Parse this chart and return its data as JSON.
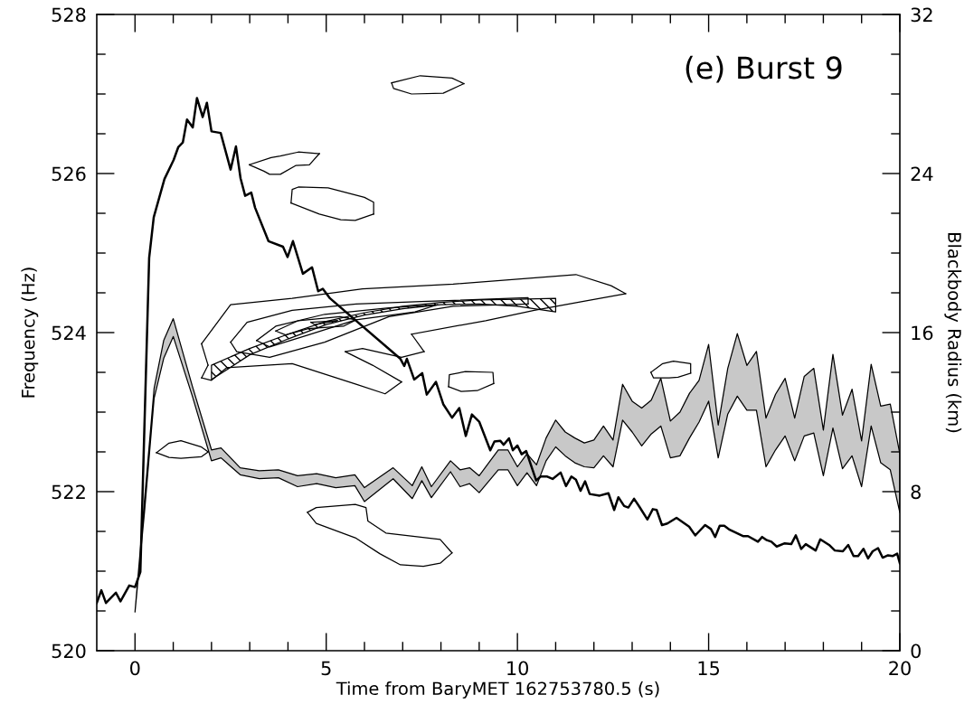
{
  "chart_data": {
    "type": "line",
    "xlabel": "Time from BaryMET 162753780.5 (s)",
    "ylabel": "Frequency (Hz)",
    "y2label": "Blackbody Radius (km)",
    "annotations": [
      "(e) Burst 9"
    ],
    "xlim": [
      -1,
      20
    ],
    "ylim": [
      520,
      528
    ],
    "y2lim": [
      0,
      32
    ],
    "xticks": [
      0,
      {
        "value": 1,
        "label": null
      },
      {
        "value": 2,
        "label": null
      },
      {
        "value": 3,
        "label": null
      },
      {
        "value": 4,
        "label": null
      },
      5,
      {
        "value": 6,
        "label": null
      },
      {
        "value": 7,
        "label": null
      },
      {
        "value": 8,
        "label": null
      },
      {
        "value": 9,
        "label": null
      },
      10,
      {
        "value": 11,
        "label": null
      },
      {
        "value": 12,
        "label": null
      },
      {
        "value": 13,
        "label": null
      },
      {
        "value": 14,
        "label": null
      },
      15,
      {
        "value": 16,
        "label": null
      },
      {
        "value": 17,
        "label": null
      },
      {
        "value": 18,
        "label": null
      },
      {
        "value": 19,
        "label": null
      },
      20
    ],
    "yticks": [
      520,
      {
        "value": 520.5,
        "label": null
      },
      {
        "value": 521,
        "label": null
      },
      {
        "value": 521.5,
        "label": null
      },
      522,
      {
        "value": 522.5,
        "label": null
      },
      {
        "value": 523,
        "label": null
      },
      {
        "value": 523.5,
        "label": null
      },
      524,
      {
        "value": 524.5,
        "label": null
      },
      {
        "value": 525,
        "label": null
      },
      {
        "value": 525.5,
        "label": null
      },
      526,
      {
        "value": 526.5,
        "label": null
      },
      {
        "value": 527,
        "label": null
      },
      {
        "value": 527.5,
        "label": null
      },
      528
    ],
    "y2ticks": [
      0,
      {
        "value": 2,
        "label": null
      },
      {
        "value": 4,
        "label": null
      },
      {
        "value": 6,
        "label": null
      },
      8,
      {
        "value": 10,
        "label": null
      },
      {
        "value": 12,
        "label": null
      },
      {
        "value": 14,
        "label": null
      },
      16,
      {
        "value": 18,
        "label": null
      },
      {
        "value": 20,
        "label": null
      },
      {
        "value": 22,
        "label": null
      },
      24,
      {
        "value": 26,
        "label": null
      },
      {
        "value": 28,
        "label": null
      },
      {
        "value": 30,
        "label": null
      },
      32
    ],
    "grid": false,
    "marker": "none",
    "series": [
      {
        "color": "#000000",
        "x": [
          -1.0,
          -0.88,
          -0.76,
          -0.5,
          -0.38,
          -0.15,
          0.0,
          0.14,
          0.37,
          0.49,
          0.77,
          1.01,
          1.13,
          1.25,
          1.36,
          1.51,
          1.62,
          1.77,
          1.88,
          2.0,
          2.24,
          2.5,
          2.64,
          2.76,
          2.88,
          3.04,
          3.14,
          3.49,
          3.87,
          3.99,
          4.13,
          4.39,
          4.63,
          4.79,
          4.91,
          5.1,
          6.94,
          7.04,
          7.11,
          7.3,
          7.51,
          7.63,
          7.87,
          8.06,
          8.29,
          8.48,
          8.65,
          8.81,
          9.0,
          9.29,
          9.4,
          9.55,
          9.64,
          9.78,
          9.88,
          10.0,
          10.11,
          10.23,
          10.49,
          10.61,
          10.78,
          10.92,
          11.13,
          11.27,
          11.41,
          11.53,
          11.65,
          11.77,
          11.89,
          12.15,
          12.38,
          12.53,
          12.64,
          12.79,
          12.9,
          13.05,
          13.19,
          13.4,
          13.54,
          13.64,
          13.78,
          13.92,
          14.16,
          14.49,
          14.65,
          14.75,
          14.91,
          15.06,
          15.17,
          15.29,
          15.41,
          15.55,
          15.91,
          16.03,
          16.29,
          16.4,
          16.52,
          16.64,
          16.78,
          16.99,
          17.16,
          17.28,
          17.42,
          17.54,
          17.8,
          17.92,
          18.15,
          18.3,
          18.51,
          18.65,
          18.79,
          18.91,
          19.05,
          19.17,
          19.29,
          19.43,
          19.55,
          19.69,
          19.81,
          19.93,
          20.0
        ],
        "values": [
          520.6,
          520.76,
          520.6,
          520.73,
          520.62,
          520.82,
          520.8,
          520.99,
          524.94,
          525.45,
          525.93,
          526.17,
          526.33,
          526.39,
          526.68,
          526.58,
          526.95,
          526.71,
          526.89,
          526.53,
          526.51,
          526.05,
          526.34,
          525.94,
          525.72,
          525.76,
          525.57,
          525.15,
          525.08,
          524.95,
          525.15,
          524.74,
          524.82,
          524.52,
          524.55,
          524.43,
          523.67,
          523.58,
          523.67,
          523.41,
          523.49,
          523.22,
          523.38,
          523.1,
          522.93,
          523.05,
          522.7,
          522.97,
          522.88,
          522.52,
          522.63,
          522.64,
          522.59,
          522.67,
          522.52,
          522.58,
          522.47,
          522.51,
          522.14,
          522.19,
          522.19,
          522.16,
          522.24,
          522.07,
          522.19,
          522.15,
          522.01,
          522.13,
          521.97,
          521.95,
          521.98,
          521.77,
          521.93,
          521.82,
          521.8,
          521.91,
          521.81,
          521.65,
          521.78,
          521.77,
          521.58,
          521.6,
          521.67,
          521.56,
          521.45,
          521.5,
          521.58,
          521.53,
          521.43,
          521.57,
          521.57,
          521.52,
          521.44,
          521.44,
          521.37,
          521.43,
          521.39,
          521.37,
          521.31,
          521.35,
          521.34,
          521.45,
          521.28,
          521.34,
          521.26,
          521.4,
          521.33,
          521.26,
          521.25,
          521.33,
          521.19,
          521.19,
          521.28,
          521.16,
          521.25,
          521.29,
          521.17,
          521.2,
          521.19,
          521.22,
          521.1
        ]
      },
      {
        "type": "area",
        "axis": "y2",
        "color": "#c8c8c8",
        "x": [
          0,
          0.25,
          0.5,
          0.75,
          1.0,
          1.5,
          2.0,
          2.25,
          2.75,
          3.25,
          3.75,
          4.25,
          4.75,
          5.25,
          5.75,
          6.0,
          6.75,
          7.25,
          7.5,
          7.75,
          8.25,
          8.5,
          8.75,
          9.0,
          9.5,
          9.75,
          10.0,
          10.25,
          10.5,
          10.75,
          11.0,
          11.25,
          11.5,
          11.75,
          12.0,
          12.25,
          12.5,
          12.75,
          13.0,
          13.25,
          13.5,
          13.75,
          14.0,
          14.25,
          14.5,
          14.75,
          15.0,
          15.25,
          15.5,
          15.75,
          16.0,
          16.25,
          16.5,
          16.75,
          17.0,
          17.25,
          17.5,
          17.75,
          18.0,
          18.25,
          18.5,
          18.75,
          19.0,
          19.25,
          19.5,
          19.75,
          20.0
        ],
        "values": [
          null,
          null,
          null,
          null,
          null,
          null,
          null,
          null,
          null,
          null,
          null,
          null,
          null,
          null,
          null,
          null,
          null,
          null,
          null,
          null,
          null,
          null,
          null,
          null,
          null,
          null,
          null,
          null,
          null,
          null,
          null,
          null,
          null,
          null,
          null,
          null,
          null,
          null,
          null,
          null,
          null,
          null,
          null,
          null,
          null,
          null,
          null,
          null,
          null,
          null,
          null,
          null,
          null,
          null,
          null,
          null,
          null,
          null,
          null,
          null,
          null,
          null,
          null,
          null,
          null,
          null,
          null
        ],
        "lower": [
          1.95,
          7.0,
          12.7,
          14.7,
          15.8,
          12.8,
          9.55,
          9.7,
          8.85,
          8.65,
          8.7,
          8.25,
          8.4,
          8.2,
          8.3,
          7.5,
          8.65,
          7.65,
          8.55,
          7.7,
          9.0,
          8.25,
          8.4,
          7.95,
          9.1,
          9.1,
          8.3,
          8.95,
          8.3,
          9.55,
          10.25,
          9.8,
          9.45,
          9.25,
          9.2,
          9.8,
          9.25,
          11.6,
          11.0,
          10.3,
          10.9,
          11.3,
          9.7,
          9.8,
          10.7,
          11.5,
          12.55,
          9.7,
          11.9,
          12.8,
          12.1,
          12.1,
          9.25,
          10.1,
          10.8,
          9.55,
          10.8,
          10.95,
          8.8,
          11.2,
          9.15,
          9.8,
          8.25,
          11.3,
          9.45,
          9.1,
          6.95
        ],
        "upper": [
          1.95,
          7.6,
          13.2,
          15.6,
          16.7,
          13.3,
          10.1,
          10.2,
          9.2,
          9.05,
          9.1,
          8.8,
          8.9,
          8.7,
          8.85,
          8.2,
          9.2,
          8.3,
          9.25,
          8.25,
          9.55,
          9.1,
          9.2,
          8.8,
          10.1,
          10.1,
          9.25,
          9.9,
          9.35,
          10.7,
          11.6,
          11.0,
          10.7,
          10.45,
          10.6,
          11.3,
          10.6,
          13.4,
          12.55,
          12.2,
          12.6,
          13.7,
          11.55,
          12.0,
          12.95,
          13.6,
          15.4,
          11.35,
          14.2,
          15.95,
          14.35,
          15.05,
          11.7,
          12.9,
          13.7,
          11.7,
          13.8,
          14.2,
          11.1,
          14.9,
          11.85,
          13.15,
          10.55,
          14.4,
          12.3,
          12.4,
          9.9
        ]
      },
      {
        "type": "area",
        "color": "#000000",
        "x": [
          2,
          3,
          4,
          5,
          6,
          7,
          8,
          9,
          10,
          11
        ],
        "values": [
          null,
          null,
          null,
          null,
          null,
          null,
          null,
          null,
          null,
          null
        ],
        "lower": [
          523.41,
          523.72,
          523.92,
          524.1,
          524.22,
          524.3,
          524.35,
          524.36,
          524.33,
          524.26
        ],
        "upper": [
          523.59,
          523.8,
          523.98,
          524.14,
          524.25,
          524.33,
          524.38,
          524.41,
          524.42,
          524.43
        ]
      },
      {
        "type": "line",
        "color": "#000000",
        "x": [
          1.74,
          2.5,
          4.11,
          5.95,
          8.32,
          11.53,
          12.45,
          12.83
        ],
        "values": [
          523.86,
          524.35,
          524.43,
          524.55,
          524.61,
          524.73,
          524.59,
          524.49
        ]
      },
      {
        "type": "line",
        "color": "#000000",
        "x": [
          1.74,
          1.91
        ],
        "values": [
          523.86,
          523.59
        ]
      },
      {
        "type": "line",
        "color": "#000000",
        "x": [
          1.74,
          1.91
        ],
        "values": [
          523.43,
          523.59
        ]
      },
      {
        "type": "line",
        "color": "#000000",
        "x": [
          1.74,
          2.0,
          2.4,
          4.11,
          5.78,
          6.54,
          6.97
        ],
        "values": [
          523.43,
          523.4,
          523.56,
          523.61,
          523.35,
          523.23,
          523.38
        ]
      },
      {
        "type": "line",
        "color": "#000000",
        "x": [
          5.5,
          6.21,
          6.97
        ],
        "values": [
          523.76,
          523.59,
          523.38
        ]
      },
      {
        "type": "line",
        "color": "#000000",
        "x": [
          5.5,
          5.95,
          6.97,
          7.56
        ],
        "values": [
          523.76,
          523.8,
          523.69,
          523.76
        ]
      },
      {
        "type": "line",
        "color": "#000000",
        "x": [
          7.23,
          7.56
        ],
        "values": [
          523.98,
          523.76
        ]
      },
      {
        "type": "line",
        "color": "#000000",
        "x": [
          7.23,
          9.17,
          10.44,
          11.7,
          12.83
        ],
        "values": [
          523.98,
          524.15,
          524.28,
          524.39,
          524.49
        ]
      },
      {
        "type": "line",
        "color": "#000000",
        "x": [
          2.5,
          2.93,
          4.11,
          5.78,
          7.49,
          10.28,
          10.28
        ],
        "values": [
          523.88,
          524.13,
          524.28,
          524.36,
          524.39,
          524.44,
          524.36
        ]
      },
      {
        "type": "line",
        "color": "#000000",
        "x": [
          2.5,
          2.66,
          3.52,
          4.96,
          6.64,
          8.32,
          10.28
        ],
        "values": [
          523.88,
          523.76,
          523.69,
          523.88,
          524.2,
          524.33,
          524.36
        ]
      },
      {
        "type": "line",
        "color": "#000000",
        "x": [
          3.18,
          3.68,
          4.96,
          6.64,
          7.91
        ],
        "values": [
          523.9,
          524.08,
          524.23,
          524.31,
          524.35
        ]
      },
      {
        "type": "line",
        "color": "#000000",
        "x": [
          3.18,
          3.52,
          4.53,
          5.78,
          7.32,
          7.91
        ],
        "values": [
          523.9,
          523.82,
          523.97,
          524.16,
          524.26,
          524.35
        ]
      },
      {
        "type": "line",
        "color": "#000000",
        "x": [
          3.68,
          4.27,
          5.36,
          5.78
        ],
        "values": [
          524.02,
          524.15,
          524.2,
          524.16
        ]
      },
      {
        "type": "line",
        "color": "#000000",
        "x": [
          3.68,
          3.94,
          4.53,
          5.45,
          5.78
        ],
        "values": [
          524.02,
          523.97,
          524.05,
          524.08,
          524.16
        ]
      },
      {
        "type": "line",
        "color": "#000000",
        "x": [
          4.6,
          5.29
        ],
        "values": [
          524.13,
          524.15
        ]
      },
      {
        "type": "line",
        "color": "#000000",
        "x": [
          4.6,
          4.7,
          5.29
        ],
        "values": [
          524.13,
          524.1,
          524.15
        ]
      },
      {
        "type": "line",
        "color": "#000000",
        "x": [
          6.71,
          7.46,
          8.29,
          8.6
        ],
        "values": [
          527.14,
          527.23,
          527.2,
          527.13
        ]
      },
      {
        "type": "line",
        "color": "#000000",
        "x": [
          6.71,
          6.76,
          7.23,
          8.06,
          8.6
        ],
        "values": [
          527.14,
          527.07,
          527.0,
          527.01,
          527.13
        ]
      },
      {
        "type": "line",
        "color": "#000000",
        "x": [
          2.99,
          3.56,
          3.8,
          4.27,
          4.82
        ],
        "values": [
          526.11,
          526.2,
          526.22,
          526.27,
          526.25
        ]
      },
      {
        "type": "line",
        "color": "#000000",
        "x": [
          2.99,
          3.37,
          3.52,
          3.8,
          4.2,
          4.56,
          4.82
        ],
        "values": [
          526.11,
          526.03,
          525.99,
          525.99,
          526.1,
          526.11,
          526.25
        ]
      },
      {
        "type": "line",
        "color": "#000000",
        "x": [
          4.08,
          4.11,
          4.27,
          5.05,
          6.0,
          6.24,
          6.24
        ],
        "values": [
          525.63,
          525.8,
          525.83,
          525.82,
          525.7,
          525.64,
          525.49
        ]
      },
      {
        "type": "line",
        "color": "#000000",
        "x": [
          4.08,
          4.82,
          5.38,
          5.76,
          6.24
        ],
        "values": [
          525.63,
          525.49,
          525.42,
          525.41,
          525.49
        ]
      },
      {
        "type": "line",
        "color": "#000000",
        "x": [
          8.2,
          8.22,
          8.64,
          9.36,
          9.38
        ],
        "values": [
          523.32,
          523.47,
          523.51,
          523.5,
          523.36
        ]
      },
      {
        "type": "line",
        "color": "#000000",
        "x": [
          8.2,
          8.53,
          8.95,
          9.38
        ],
        "values": [
          523.32,
          523.26,
          523.27,
          523.36
        ]
      },
      {
        "type": "line",
        "color": "#000000",
        "x": [
          13.49,
          13.8,
          14.08,
          14.53,
          14.53
        ],
        "values": [
          523.5,
          523.61,
          523.64,
          523.61,
          523.49
        ]
      },
      {
        "type": "line",
        "color": "#000000",
        "x": [
          13.49,
          13.56,
          13.97,
          14.2,
          14.53
        ],
        "values": [
          523.5,
          523.43,
          523.43,
          523.44,
          523.49
        ]
      },
      {
        "type": "line",
        "color": "#000000",
        "x": [
          0.56,
          0.89,
          1.2,
          1.74,
          1.91
        ],
        "values": [
          522.49,
          522.61,
          522.64,
          522.56,
          522.5
        ]
      },
      {
        "type": "line",
        "color": "#000000",
        "x": [
          0.56,
          0.89,
          1.2,
          1.74,
          1.91
        ],
        "values": [
          522.49,
          522.43,
          522.42,
          522.44,
          522.5
        ]
      },
      {
        "type": "line",
        "color": "#000000",
        "x": [
          4.51,
          4.74,
          5.76,
          6.04,
          6.09,
          6.56,
          7.98,
          8.29
        ],
        "values": [
          521.74,
          521.8,
          521.84,
          521.8,
          521.63,
          521.48,
          521.4,
          521.23
        ]
      },
      {
        "type": "line",
        "color": "#000000",
        "x": [
          4.51,
          4.74,
          5.76,
          6.4,
          6.94,
          7.54,
          7.98,
          8.29
        ],
        "values": [
          521.74,
          521.6,
          521.42,
          521.22,
          521.08,
          521.06,
          521.1,
          521.23
        ]
      }
    ]
  }
}
